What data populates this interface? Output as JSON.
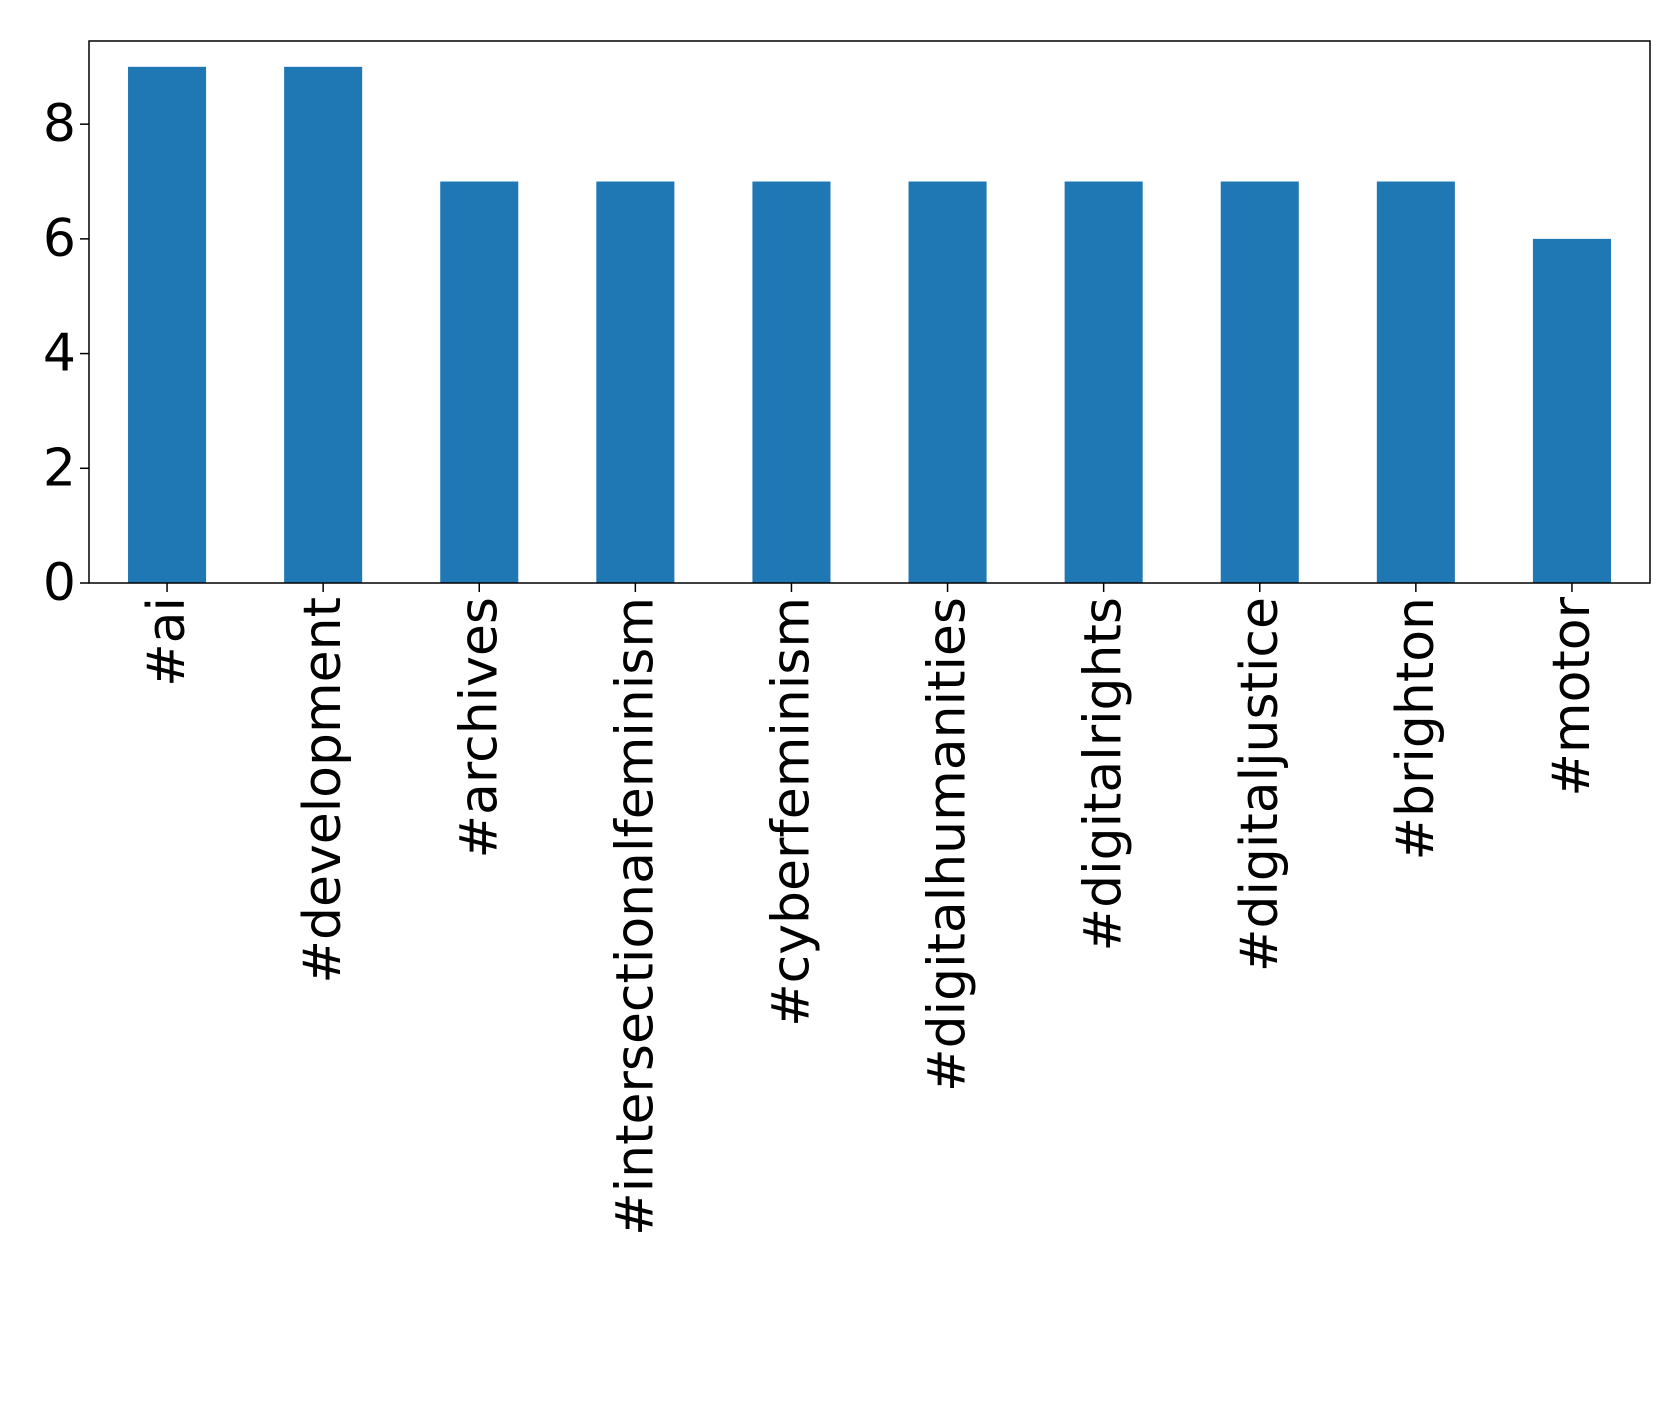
{
  "chart_data": {
    "type": "bar",
    "title": "",
    "xlabel": "",
    "ylabel": "",
    "categories": [
      "#ai",
      "#development",
      "#archives",
      "#intersectionalfeminism",
      "#cyberfeminism",
      "#digitalhumanities",
      "#digitalrights",
      "#digitaljustice",
      "#brighton",
      "#motor"
    ],
    "values": [
      9,
      9,
      7,
      7,
      7,
      7,
      7,
      7,
      7,
      6
    ],
    "ylim": [
      0,
      9.45
    ],
    "yticks": [
      0,
      2,
      4,
      6,
      8
    ],
    "ytick_labels": [
      "0",
      "2",
      "4",
      "6",
      "8"
    ],
    "grid": false,
    "legend": "none",
    "colors": {
      "bar": "#1f77b4",
      "axes": "#000000",
      "background": "#ffffff"
    }
  }
}
